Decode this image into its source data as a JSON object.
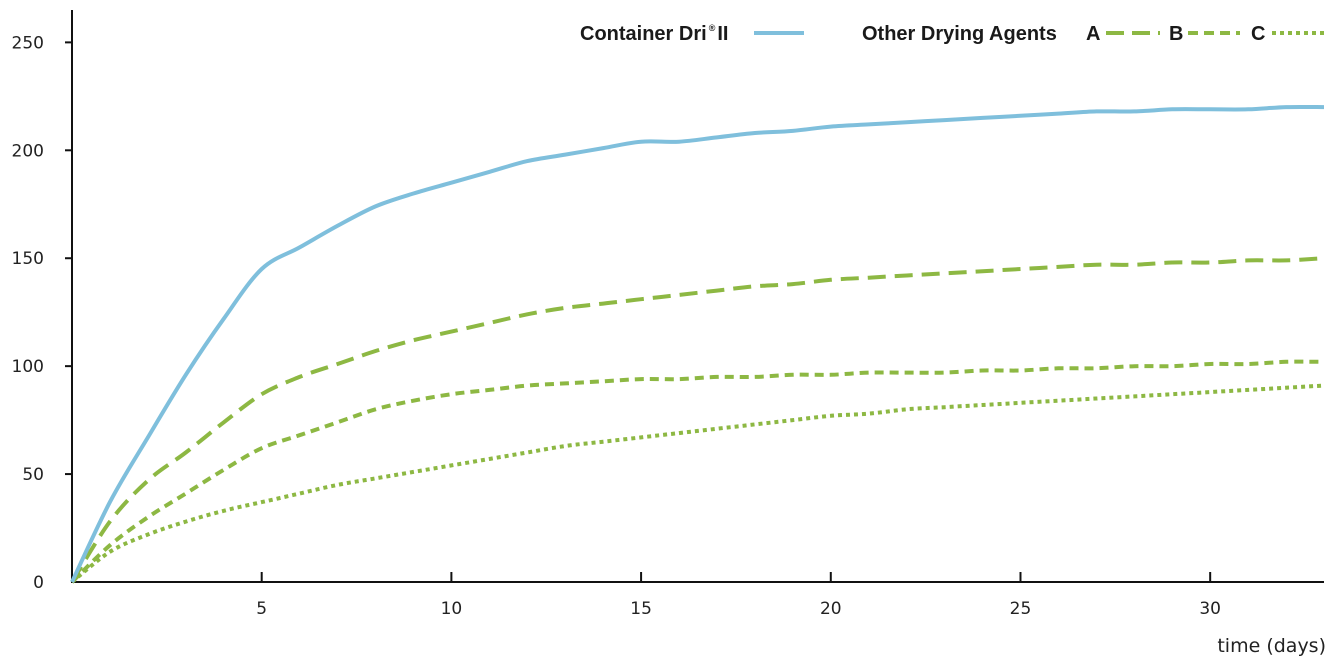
{
  "chart_data": {
    "type": "line",
    "xlabel": "time (days)",
    "ylabel": "",
    "xlim": [
      0,
      33
    ],
    "ylim": [
      0,
      265
    ],
    "x_ticks": [
      5,
      10,
      15,
      20,
      25,
      30
    ],
    "y_ticks": [
      0,
      50,
      100,
      150,
      200,
      250
    ],
    "grid": false,
    "legend_position": "top-right",
    "legend": {
      "primary_label": "Container Dri",
      "primary_sup": "®",
      "primary_suffix": "II",
      "group_label": "Other Drying Agents",
      "a": "A",
      "b": "B",
      "c": "C"
    },
    "colors": {
      "primary": "#7fbfdc",
      "other": "#8db843"
    },
    "series": [
      {
        "name": "Container Dri® II",
        "style": "solid",
        "x": [
          0,
          1,
          2,
          3,
          4,
          5,
          6,
          7,
          8,
          9,
          10,
          11,
          12,
          13,
          14,
          15,
          16,
          17,
          18,
          19,
          20,
          21,
          22,
          23,
          24,
          25,
          26,
          27,
          28,
          29,
          30,
          31,
          32,
          33
        ],
        "y": [
          0,
          37,
          67,
          96,
          122,
          145,
          155,
          165,
          174,
          180,
          185,
          190,
          195,
          198,
          201,
          204,
          204,
          206,
          208,
          209,
          211,
          212,
          213,
          214,
          215,
          216,
          217,
          218,
          218,
          219,
          219,
          219,
          220,
          220
        ]
      },
      {
        "name": "A",
        "style": "long-dash",
        "x": [
          0,
          1,
          2,
          3,
          4,
          5,
          6,
          7,
          8,
          9,
          10,
          11,
          12,
          13,
          14,
          15,
          16,
          17,
          18,
          19,
          20,
          21,
          22,
          23,
          24,
          25,
          26,
          27,
          28,
          29,
          30,
          31,
          32,
          33
        ],
        "y": [
          0,
          28,
          47,
          60,
          74,
          87,
          95,
          101,
          107,
          112,
          116,
          120,
          124,
          127,
          129,
          131,
          133,
          135,
          137,
          138,
          140,
          141,
          142,
          143,
          144,
          145,
          146,
          147,
          147,
          148,
          148,
          149,
          149,
          150
        ]
      },
      {
        "name": "B",
        "style": "dash",
        "x": [
          0,
          1,
          2,
          3,
          4,
          5,
          6,
          7,
          8,
          9,
          10,
          11,
          12,
          13,
          14,
          15,
          16,
          17,
          18,
          19,
          20,
          21,
          22,
          23,
          24,
          25,
          26,
          27,
          28,
          29,
          30,
          31,
          32,
          33
        ],
        "y": [
          0,
          17,
          30,
          41,
          52,
          62,
          68,
          74,
          80,
          84,
          87,
          89,
          91,
          92,
          93,
          94,
          94,
          95,
          95,
          96,
          96,
          97,
          97,
          97,
          98,
          98,
          99,
          99,
          100,
          100,
          101,
          101,
          102,
          102
        ]
      },
      {
        "name": "C",
        "style": "dot",
        "x": [
          0,
          1,
          2,
          3,
          4,
          5,
          6,
          7,
          8,
          9,
          10,
          11,
          12,
          13,
          14,
          15,
          16,
          17,
          18,
          19,
          20,
          21,
          22,
          23,
          24,
          25,
          26,
          27,
          28,
          29,
          30,
          31,
          32,
          33
        ],
        "y": [
          0,
          14,
          22,
          28,
          33,
          37,
          41,
          45,
          48,
          51,
          54,
          57,
          60,
          63,
          65,
          67,
          69,
          71,
          73,
          75,
          77,
          78,
          80,
          81,
          82,
          83,
          84,
          85,
          86,
          87,
          88,
          89,
          90,
          91
        ]
      }
    ]
  }
}
